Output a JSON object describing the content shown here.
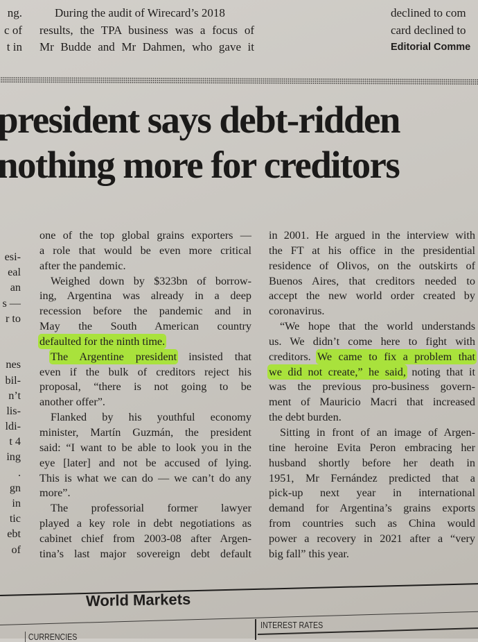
{
  "top": {
    "left_fragments": [
      "ng.",
      "c of",
      "t in"
    ],
    "center_lines": [
      "During the audit of Wirecard’s 2018",
      "results, the TPA business was a focus of",
      "Mr Budde and Mr Dahmen, who gave it"
    ],
    "right_lines": [
      "declined to com",
      "card declined to",
      "Editorial Comme"
    ]
  },
  "headline": {
    "line1": "president says debt-ridden",
    "line2": "nothing more for creditors"
  },
  "highlight_color": "#a9e23c",
  "left_column_fragments": [
    "esi-",
    "eal",
    "an",
    "s —",
    "r to",
    "",
    "",
    "nes",
    "bil-",
    "n’t",
    "lis-",
    "ldi-",
    "t 4",
    "ing",
    ".",
    "gn",
    "in",
    "tic",
    "ebt",
    "of"
  ],
  "columns": [
    {
      "paragraphs": [
        [
          "one of the top global grains exporters —",
          "a role that would be even more critical",
          "after the pandemic."
        ],
        [
          "Weighed down by $323bn of borrow-",
          "ing, Argentina was already in a deep",
          "recession before the pandemic and in",
          "May the South American country",
          [
            {
              "hl": "defaulted for the ninth time."
            }
          ]
        ],
        [
          [
            {
              "hl": "The Argentine president"
            },
            " insisted that"
          ],
          "even if the bulk of creditors reject his",
          "proposal, “there is not going to be",
          "another offer”."
        ],
        [
          "Flanked by his youthful economy",
          "minister, Martín Guzmán, the president",
          "said: “I want to be able to look you in the",
          "eye [later] and not be accused of lying.",
          "This is what we can do — we can’t do any",
          "more”."
        ],
        [
          "The professorial former lawyer",
          "played a key role in debt negotiations as",
          "cabinet chief from 2003-08 after Argen-",
          "tina’s last major sovereign debt default"
        ]
      ]
    },
    {
      "paragraphs": [
        [
          "in 2001. He argued in the interview with",
          "the FT at his office in the presidential",
          "residence of Olivos, on the outskirts of",
          "Buenos Aires, that creditors needed to",
          "accept the new world order created by",
          "coronavirus."
        ],
        [
          "“We hope that the world understands",
          "us. We didn’t come here to fight with",
          [
            "creditors. ",
            {
              "hl": "We came to fix a problem that"
            }
          ],
          [
            {
              "hl": "we did not create,” he said,"
            },
            " noting that it"
          ],
          "was the previous pro-business govern-",
          "ment of Mauricio Macri that increased",
          "the debt burden."
        ],
        [
          "Sitting in front of an image of Argen-",
          "tine heroine Evita Peron embracing her",
          "husband shortly before her death in",
          "1951, Mr Fernández predicted that a",
          "pick-up next year in international",
          "demand for Argentina’s grains exports",
          "from countries such as China would",
          "power a recovery in 2021 after a “very",
          "big fall” this year."
        ]
      ]
    }
  ],
  "bottom": {
    "section_title": "World Markets",
    "interest_rates": "INTEREST RATES",
    "currencies": "CURRENCIES"
  }
}
